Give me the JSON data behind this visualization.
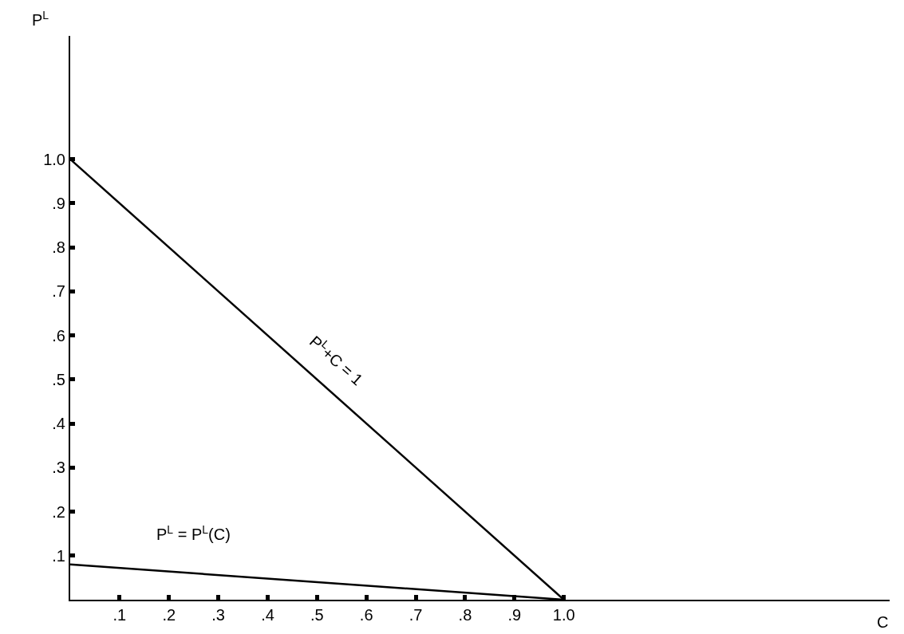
{
  "chart_data": {
    "type": "line",
    "xlabel": "C",
    "ylabel": "P$^{L}$",
    "x": [
      0,
      1.0
    ],
    "series": [
      {
        "color": "#000000",
        "values": [
          1.0,
          0
        ]
      },
      {
        "color": "#000000",
        "values": [
          0.08,
          0
        ]
      }
    ],
    "annotations": [
      {
        "text": "P$^{L}$+C = 1",
        "x": 0.5,
        "y": 0.5
      },
      {
        "text": "P$^{L}$ = P$^{L}$(C)",
        "x": 0.25,
        "y": 0.06
      }
    ],
    "xlim": [
      0,
      1.66
    ],
    "ylim": [
      0,
      1.28
    ],
    "xticks": [
      {
        "value": 0.1,
        "label": ".1"
      },
      {
        "value": 0.2,
        "label": ".2"
      },
      {
        "value": 0.3,
        "label": ".3"
      },
      {
        "value": 0.4,
        "label": ".4"
      },
      {
        "value": 0.5,
        "label": ".5"
      },
      {
        "value": 0.6,
        "label": ".6"
      },
      {
        "value": 0.7,
        "label": ".7"
      },
      {
        "value": 0.8,
        "label": ".8"
      },
      {
        "value": 0.9,
        "label": ".9"
      },
      {
        "value": 1.0,
        "label": "1.0"
      }
    ],
    "yticks": [
      {
        "value": 0.1,
        "label": ".1"
      },
      {
        "value": 0.2,
        "label": ".2"
      },
      {
        "value": 0.3,
        "label": ".3"
      },
      {
        "value": 0.4,
        "label": ".4"
      },
      {
        "value": 0.5,
        "label": ".5"
      },
      {
        "value": 0.6,
        "label": ".6"
      },
      {
        "value": 0.7,
        "label": ".7"
      },
      {
        "value": 0.8,
        "label": ".8"
      },
      {
        "value": 0.9,
        "label": ".9"
      },
      {
        "value": 1.0,
        "label": "1.0"
      }
    ],
    "marker": "none",
    "line_style": "solid"
  }
}
